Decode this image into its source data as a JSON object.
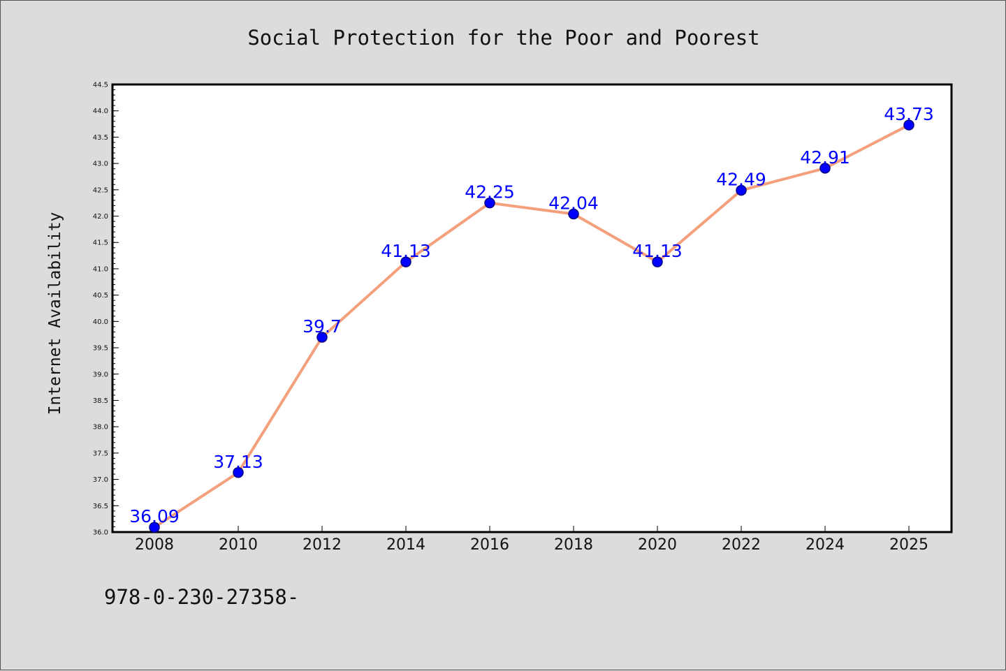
{
  "chart_data": {
    "type": "line",
    "title": "Social Protection for the Poor and Poorest",
    "xlabel": "",
    "ylabel": "Internet Availability",
    "categories": [
      "2008",
      "2010",
      "2012",
      "2014",
      "2016",
      "2018",
      "2020",
      "2022",
      "2024",
      "2025"
    ],
    "series": [
      {
        "values": [
          36.09,
          37.13,
          39.7,
          41.13,
          42.25,
          42.04,
          41.13,
          42.49,
          42.91,
          43.73
        ],
        "labels": [
          "36.09",
          "37.13",
          "39.7",
          "41.13",
          "42.25",
          "42.04",
          "41.13",
          "42.49",
          "42.91",
          "43.73"
        ]
      }
    ],
    "ylim": [
      36.0,
      44.5
    ],
    "yticks": [
      "36.0",
      "36.5",
      "37.0",
      "37.5",
      "38.0",
      "38.5",
      "39.0",
      "39.5",
      "40.0",
      "40.5",
      "41.0",
      "41.5",
      "42.0",
      "42.5",
      "43.0",
      "43.5",
      "44.0",
      "44.5"
    ],
    "grid": false,
    "colors": {
      "line": "#f4a07c",
      "marker": "#0000ff",
      "marker_edge": "#000080",
      "label": "#0000ff"
    }
  },
  "footer": {
    "text": "978-0-230-27358-"
  }
}
